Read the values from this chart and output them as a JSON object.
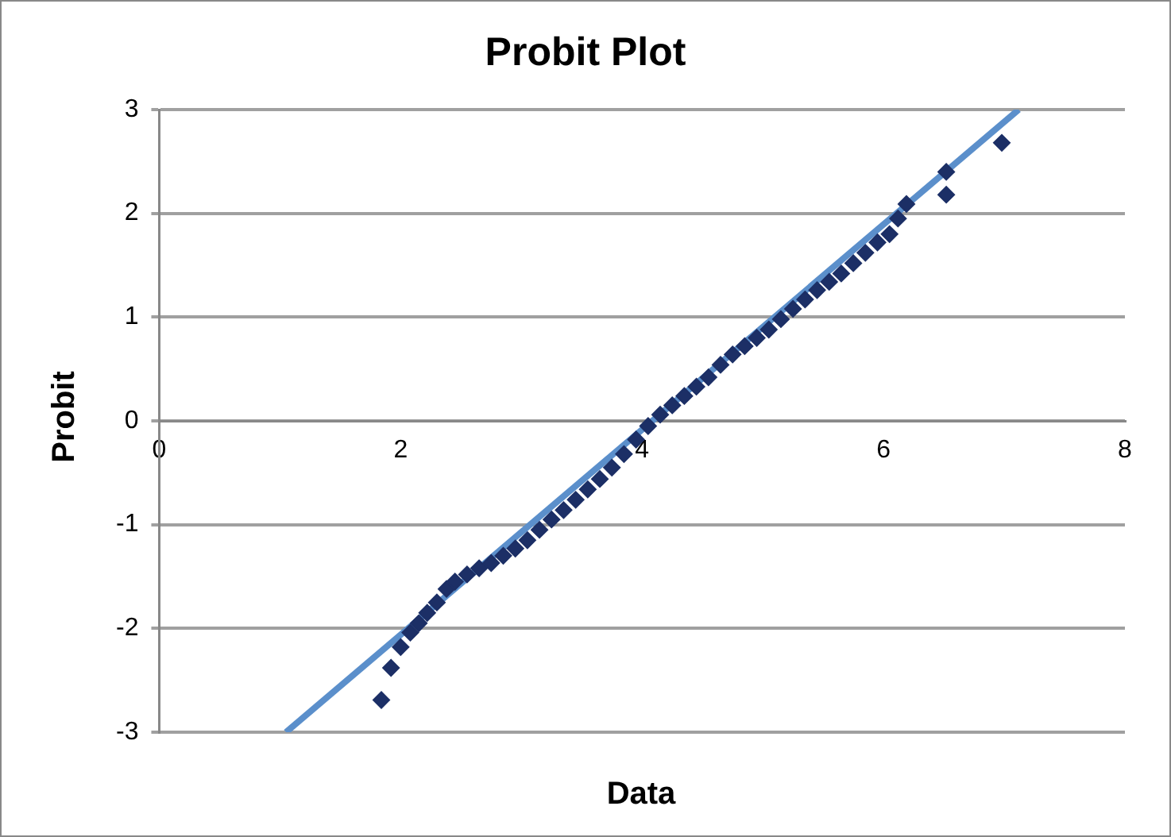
{
  "chart_data": {
    "type": "scatter",
    "title": "Probit Plot",
    "xlabel": "Data",
    "ylabel": "Probit",
    "xlim": [
      0,
      8
    ],
    "xticks": [
      0,
      2,
      4,
      6,
      8
    ],
    "ylim": [
      -3,
      3
    ],
    "yticks": [
      -3,
      -2,
      -1,
      0,
      1,
      2,
      3
    ],
    "grid": "y",
    "legend": false,
    "series": [
      {
        "type": "scatter",
        "marker": "diamond",
        "color": "#1c2f66",
        "x": [
          1.84,
          1.92,
          2.0,
          2.08,
          2.15,
          2.22,
          2.3,
          2.38,
          2.45,
          2.55,
          2.65,
          2.75,
          2.85,
          2.95,
          3.05,
          3.15,
          3.25,
          3.35,
          3.45,
          3.55,
          3.65,
          3.75,
          3.85,
          3.95,
          4.05,
          4.15,
          4.25,
          4.35,
          4.45,
          4.55,
          4.65,
          4.75,
          4.85,
          4.95,
          5.05,
          5.15,
          5.25,
          5.35,
          5.45,
          5.55,
          5.65,
          5.75,
          5.85,
          5.95,
          6.05,
          6.12,
          6.19,
          6.52,
          6.52,
          6.98
        ],
        "values": [
          -2.69,
          -2.38,
          -2.18,
          -2.04,
          -1.95,
          -1.85,
          -1.75,
          -1.62,
          -1.55,
          -1.48,
          -1.42,
          -1.37,
          -1.3,
          -1.23,
          -1.15,
          -1.05,
          -0.95,
          -0.86,
          -0.76,
          -0.66,
          -0.56,
          -0.45,
          -0.32,
          -0.18,
          -0.05,
          0.06,
          0.15,
          0.24,
          0.33,
          0.42,
          0.54,
          0.64,
          0.72,
          0.8,
          0.88,
          0.98,
          1.08,
          1.17,
          1.26,
          1.34,
          1.42,
          1.52,
          1.62,
          1.72,
          1.8,
          1.95,
          2.09,
          2.18,
          2.4,
          2.68
        ]
      },
      {
        "type": "line",
        "marker": "none",
        "line_style": "solid",
        "color": "#5b8fcb",
        "x": [
          1.05,
          7.12
        ],
        "values": [
          -3,
          3
        ]
      }
    ]
  }
}
